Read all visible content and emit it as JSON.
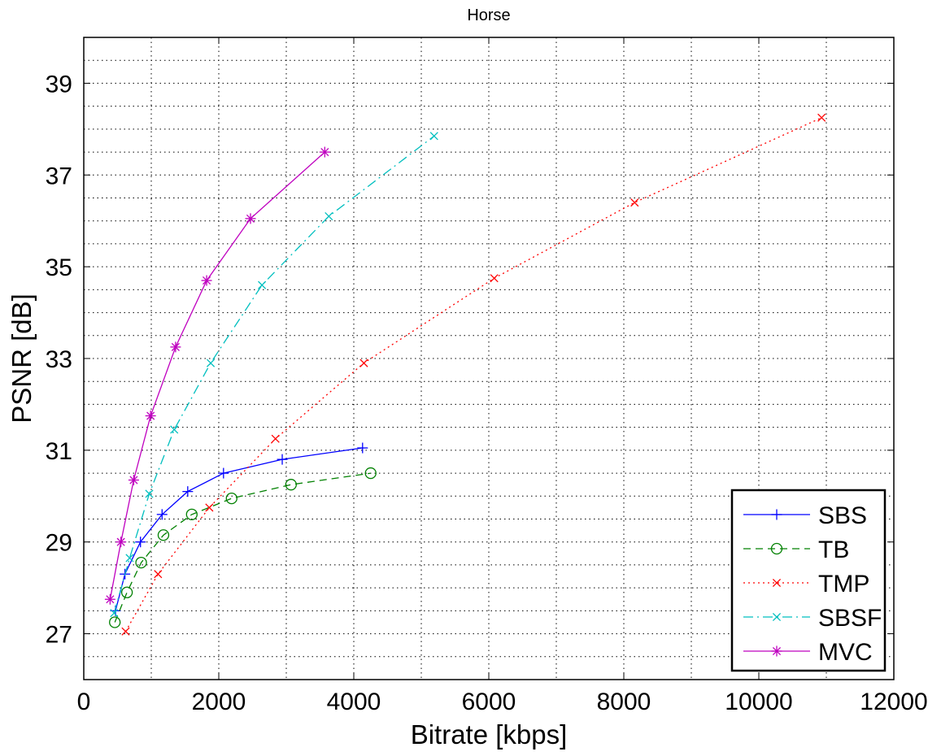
{
  "chart_data": {
    "type": "line",
    "title": "Horse",
    "xlabel": "Bitrate [kbps]",
    "ylabel": "PSNR [dB]",
    "xlim": [
      0,
      12000
    ],
    "ylim": [
      26,
      40
    ],
    "x_ticks": [
      0,
      2000,
      4000,
      6000,
      8000,
      10000,
      12000
    ],
    "y_ticks": [
      27,
      29,
      31,
      33,
      35,
      37,
      39
    ],
    "grid": true,
    "legend_position": "bottom-right",
    "series": [
      {
        "name": "SBS",
        "color": "#0000ff",
        "line_style": "solid",
        "marker": "plus",
        "x": [
          470,
          610,
          840,
          1160,
          1540,
          2070,
          2940,
          4130
        ],
        "y": [
          27.5,
          28.3,
          29.0,
          29.6,
          30.1,
          30.5,
          30.8,
          31.05
        ]
      },
      {
        "name": "TB",
        "color": "#008000",
        "line_style": "dashed",
        "marker": "circle",
        "x": [
          460,
          640,
          850,
          1180,
          1600,
          2190,
          3070,
          4250
        ],
        "y": [
          27.25,
          27.9,
          28.55,
          29.15,
          29.6,
          29.95,
          30.25,
          30.5
        ]
      },
      {
        "name": "TMP",
        "color": "#ff0000",
        "line_style": "dotted",
        "marker": "x",
        "x": [
          620,
          1100,
          1860,
          2840,
          4150,
          6080,
          8160,
          10930
        ],
        "y": [
          27.05,
          28.3,
          29.75,
          31.25,
          32.9,
          34.75,
          36.4,
          38.25
        ]
      },
      {
        "name": "SBSF",
        "color": "#00bfbf",
        "line_style": "dashdot",
        "marker": "x",
        "x": [
          450,
          680,
          970,
          1340,
          1880,
          2640,
          3630,
          5190
        ],
        "y": [
          27.45,
          28.65,
          30.05,
          31.45,
          32.9,
          34.6,
          36.1,
          37.85
        ]
      },
      {
        "name": "MVC",
        "color": "#bf00bf",
        "line_style": "solid",
        "marker": "star",
        "x": [
          390,
          550,
          740,
          990,
          1360,
          1820,
          2470,
          3570
        ],
        "y": [
          27.75,
          29.0,
          30.35,
          31.75,
          33.25,
          34.7,
          36.05,
          37.5
        ]
      }
    ]
  }
}
